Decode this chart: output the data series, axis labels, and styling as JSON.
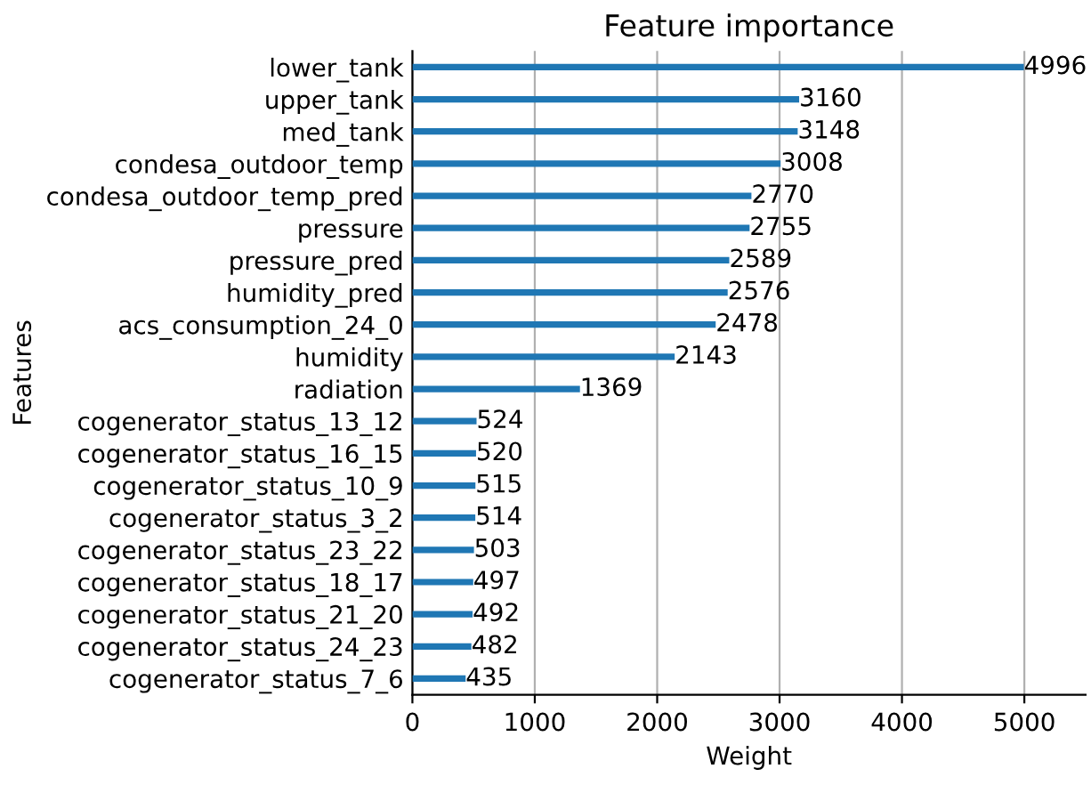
{
  "chart_data": {
    "type": "bar",
    "orientation": "horizontal",
    "title": "Feature importance",
    "xlabel": "Weight",
    "ylabel": "Features",
    "categories": [
      "lower_tank",
      "upper_tank",
      "med_tank",
      "condesa_outdoor_temp",
      "condesa_outdoor_temp_pred",
      "pressure",
      "pressure_pred",
      "humidity_pred",
      "acs_consumption_24_0",
      "humidity",
      "radiation",
      "cogenerator_status_13_12",
      "cogenerator_status_16_15",
      "cogenerator_status_10_9",
      "cogenerator_status_3_2",
      "cogenerator_status_23_22",
      "cogenerator_status_18_17",
      "cogenerator_status_21_20",
      "cogenerator_status_24_23",
      "cogenerator_status_7_6"
    ],
    "values": [
      4996,
      3160,
      3148,
      3008,
      2770,
      2755,
      2589,
      2576,
      2478,
      2143,
      1369,
      524,
      520,
      515,
      514,
      503,
      497,
      492,
      482,
      435
    ],
    "color": "#1f77b4",
    "xlim": [
      0,
      5500
    ],
    "xticks": [
      0,
      1000,
      2000,
      3000,
      4000,
      5000
    ],
    "grid": "x",
    "data_labels": true,
    "legend": false
  }
}
